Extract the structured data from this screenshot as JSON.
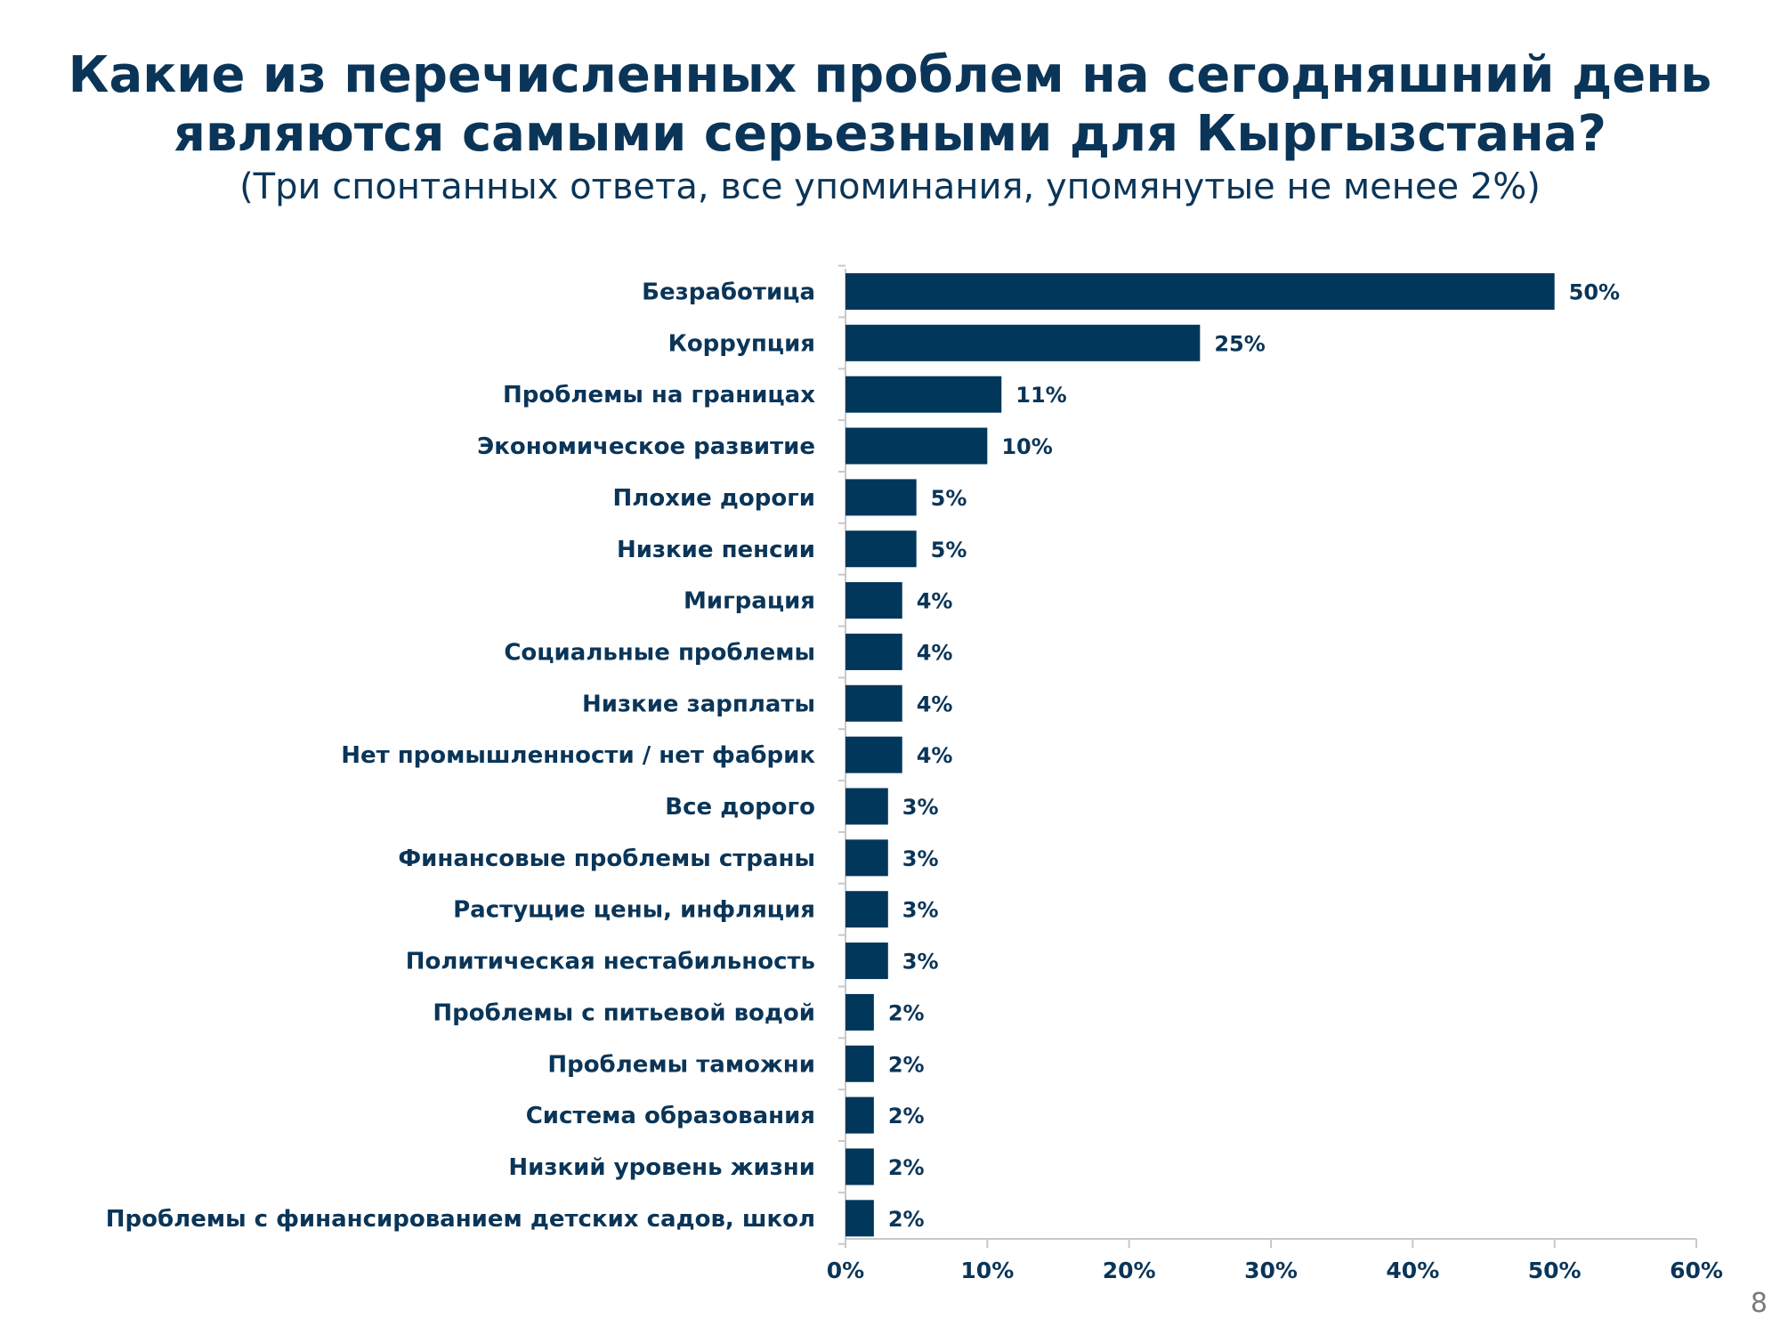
{
  "slide": {
    "title_line1": "Какие из перечисленных проблем на сегодняшний день",
    "title_line2": "являются самыми серьезными для Кыргызстана?",
    "subtitle": "(Три спонтанных ответа, все упоминания, упомянутые не менее 2%)",
    "page_number": "8"
  },
  "colors": {
    "bar": "#00375a",
    "text": "#0a3558",
    "axis": "#c8c8c8"
  },
  "chart_data": {
    "type": "bar",
    "orientation": "horizontal",
    "categories": [
      "Безработица",
      "Коррупция",
      "Проблемы на границах",
      "Экономическое развитие",
      "Плохие дороги",
      "Низкие пенсии",
      "Миграция",
      "Социальные проблемы",
      "Низкие зарплаты",
      "Нет промышленности / нет фабрик",
      "Все дорого",
      "Финансовые проблемы страны",
      "Растущие цены, инфляция",
      "Политическая нестабильность",
      "Проблемы с питьевой водой",
      "Проблемы таможни",
      "Система образования",
      "Низкий уровень жизни",
      "Проблемы с финансированием детских садов, школ"
    ],
    "values": [
      50,
      25,
      11,
      10,
      5,
      5,
      4,
      4,
      4,
      4,
      3,
      3,
      3,
      3,
      2,
      2,
      2,
      2,
      2
    ],
    "value_labels": [
      "50%",
      "25%",
      "11%",
      "10%",
      "5%",
      "5%",
      "4%",
      "4%",
      "4%",
      "4%",
      "3%",
      "3%",
      "3%",
      "3%",
      "2%",
      "2%",
      "2%",
      "2%",
      "2%"
    ],
    "xlim": [
      0,
      60
    ],
    "xticks": [
      0,
      10,
      20,
      30,
      40,
      50,
      60
    ],
    "xtick_labels": [
      "0%",
      "10%",
      "20%",
      "30%",
      "40%",
      "50%",
      "60%"
    ],
    "grid": false,
    "legend": "none"
  }
}
